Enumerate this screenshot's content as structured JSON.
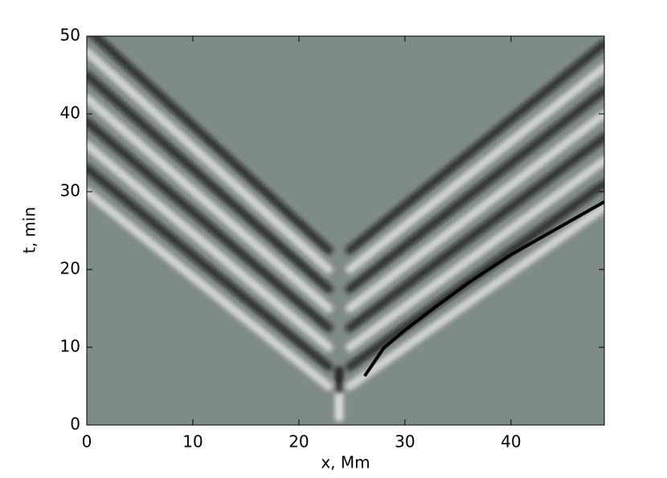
{
  "chart_data": {
    "type": "line",
    "xlabel": "x, Mm",
    "ylabel": "t, min",
    "xlim": [
      0,
      48.8
    ],
    "ylim": [
      0,
      50
    ],
    "xticks": [
      0,
      10,
      20,
      30,
      40
    ],
    "yticks": [
      0,
      10,
      20,
      30,
      40,
      50
    ],
    "background": "#7f8b89",
    "ridges": [
      {
        "color": "#f2f2f2",
        "x": [
          22.8,
          0
        ],
        "values": [
          5,
          30
        ]
      },
      {
        "color": "#111111",
        "x": [
          22.8,
          0
        ],
        "values": [
          7.5,
          33
        ]
      },
      {
        "color": "#f2f2f2",
        "x": [
          22.8,
          0
        ],
        "values": [
          10,
          36
        ]
      },
      {
        "color": "#111111",
        "x": [
          22.8,
          0
        ],
        "values": [
          12.5,
          39
        ]
      },
      {
        "color": "#f2f2f2",
        "x": [
          22.8,
          0
        ],
        "values": [
          15,
          42
        ]
      },
      {
        "color": "#111111",
        "x": [
          22.8,
          0
        ],
        "values": [
          17.5,
          45
        ]
      },
      {
        "color": "#f2f2f2",
        "x": [
          22.8,
          0
        ],
        "values": [
          20,
          48
        ]
      },
      {
        "color": "#111111",
        "x": [
          22.8,
          0
        ],
        "values": [
          22.5,
          51
        ]
      },
      {
        "color": "#f2f2f2",
        "x": [
          24.8,
          48.8
        ],
        "values": [
          5,
          28
        ]
      },
      {
        "color": "#111111",
        "x": [
          24.8,
          48.8
        ],
        "values": [
          7.5,
          31
        ]
      },
      {
        "color": "#f2f2f2",
        "x": [
          24.8,
          48.8
        ],
        "values": [
          10,
          34
        ]
      },
      {
        "color": "#111111",
        "x": [
          24.8,
          48.8
        ],
        "values": [
          12.5,
          37
        ]
      },
      {
        "color": "#f2f2f2",
        "x": [
          24.8,
          48.8
        ],
        "values": [
          15,
          40
        ]
      },
      {
        "color": "#111111",
        "x": [
          24.8,
          48.8
        ],
        "values": [
          17.5,
          43
        ]
      },
      {
        "color": "#f2f2f2",
        "x": [
          24.8,
          48.8
        ],
        "values": [
          20,
          46
        ]
      },
      {
        "color": "#111111",
        "x": [
          24.8,
          48.8
        ],
        "values": [
          22.5,
          49
        ]
      },
      {
        "color": "#ffffff",
        "x": [
          23.8,
          23.8
        ],
        "values": [
          1,
          4.5
        ]
      },
      {
        "color": "#000000",
        "x": [
          23.8,
          23.8
        ],
        "values": [
          4.5,
          7
        ]
      }
    ],
    "series": [
      {
        "color": "#000000",
        "x": [
          26.2,
          28,
          30,
          33,
          36,
          40,
          44,
          48.8
        ],
        "values": [
          6.3,
          9.9,
          12.2,
          15.3,
          18.3,
          21.9,
          25,
          28.7
        ]
      }
    ]
  }
}
